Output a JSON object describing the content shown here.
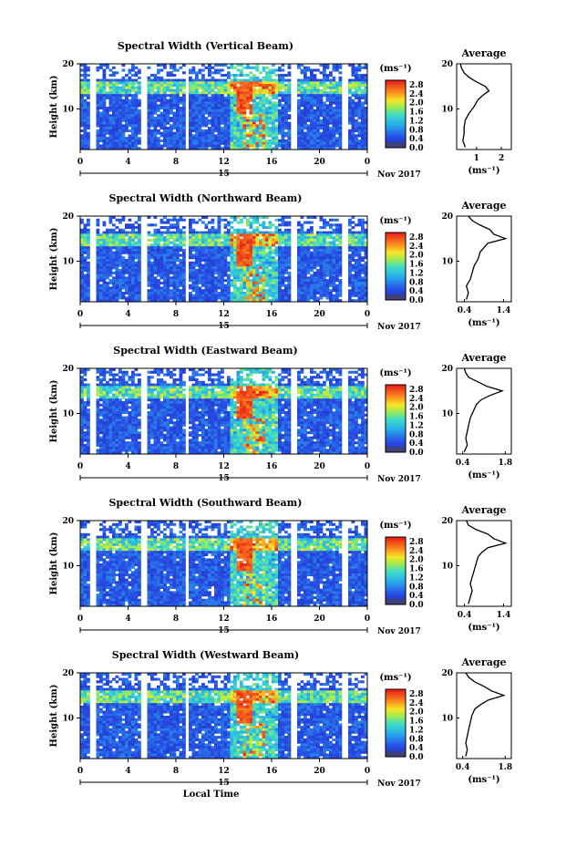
{
  "chart_data": [
    {
      "type": "heatmap",
      "title": "Spectral Width (Vertical Beam)",
      "ylabel": "Height (km)",
      "y_ticks": [
        "20",
        "10"
      ],
      "ylim": [
        1,
        20
      ],
      "x_ticks": [
        "0",
        "4",
        "8",
        "12",
        "16",
        "20",
        "0"
      ],
      "xlim": [
        0,
        24
      ],
      "day_label": "15",
      "month_label": "Nov 2017",
      "colorbar": {
        "unit": "(ms⁻¹)",
        "ticks": [
          "2.8",
          "2.4",
          "2.0",
          "1.6",
          "1.2",
          "0.8",
          "0.4",
          "0.0"
        ],
        "range": [
          0,
          3.0
        ]
      },
      "average_profile": {
        "title": "Average",
        "ylabel": "",
        "xlabel": "(ms⁻¹)",
        "x_ticks": [
          "1",
          "2"
        ],
        "xlim": [
          0.2,
          2.4
        ],
        "y_ticks": [
          "20",
          "10"
        ],
        "heights": [
          1.5,
          3,
          4.5,
          6,
          7.5,
          9,
          10.5,
          12,
          13,
          14,
          15,
          16,
          17,
          18,
          19,
          20
        ],
        "values": [
          0.55,
          0.45,
          0.5,
          0.5,
          0.55,
          0.7,
          0.9,
          1.05,
          1.25,
          1.5,
          1.35,
          1.0,
          0.7,
          0.5,
          0.4,
          0.35
        ]
      }
    },
    {
      "type": "heatmap",
      "title": "Spectral Width (Northward Beam)",
      "ylabel": "Height (km)",
      "y_ticks": [
        "20",
        "10"
      ],
      "ylim": [
        1,
        20
      ],
      "x_ticks": [
        "0",
        "4",
        "8",
        "12",
        "16",
        "20",
        "0"
      ],
      "xlim": [
        0,
        24
      ],
      "day_label": "15",
      "month_label": "Nov 2017",
      "colorbar": {
        "unit": "(ms⁻¹)",
        "ticks": [
          "2.8",
          "2.4",
          "2.0",
          "1.6",
          "1.2",
          "0.8",
          "0.4",
          "0.0"
        ],
        "range": [
          0,
          3.0
        ]
      },
      "average_profile": {
        "title": "Average",
        "xlabel": "(ms⁻¹)",
        "x_ticks": [
          "0.4",
          "1.4"
        ],
        "xlim": [
          0.2,
          1.6
        ],
        "y_ticks": [
          "20",
          "10"
        ],
        "heights": [
          1.5,
          3,
          4.5,
          6,
          7.5,
          9,
          10.5,
          12,
          13,
          14,
          15,
          16,
          17,
          18,
          19,
          20
        ],
        "values": [
          0.45,
          0.5,
          0.45,
          0.55,
          0.6,
          0.65,
          0.75,
          0.8,
          0.9,
          1.0,
          1.45,
          1.15,
          1.05,
          0.8,
          0.6,
          0.5
        ]
      }
    },
    {
      "type": "heatmap",
      "title": "Spectral Width (Eastward Beam)",
      "ylabel": "Height (km)",
      "y_ticks": [
        "20",
        "10"
      ],
      "ylim": [
        1,
        20
      ],
      "x_ticks": [
        "0",
        "4",
        "8",
        "12",
        "16",
        "20",
        "0"
      ],
      "xlim": [
        0,
        24
      ],
      "day_label": "15",
      "month_label": "Nov 2017",
      "colorbar": {
        "unit": "(ms⁻¹)",
        "ticks": [
          "2.8",
          "2.4",
          "2.0",
          "1.6",
          "1.2",
          "0.8",
          "0.4",
          "0.0"
        ],
        "range": [
          0,
          3.0
        ]
      },
      "average_profile": {
        "title": "Average",
        "xlabel": "(ms⁻¹)",
        "x_ticks": [
          "0.4",
          "1.8"
        ],
        "xlim": [
          0.2,
          2.0
        ],
        "y_ticks": [
          "20",
          "10"
        ],
        "heights": [
          1.5,
          3,
          4.5,
          6,
          7.5,
          9,
          10.5,
          12,
          13,
          14,
          15,
          16,
          17,
          18,
          19,
          20
        ],
        "values": [
          0.45,
          0.55,
          0.5,
          0.55,
          0.6,
          0.65,
          0.75,
          0.85,
          1.0,
          1.3,
          1.7,
          1.2,
          0.9,
          0.6,
          0.5,
          0.45
        ]
      }
    },
    {
      "type": "heatmap",
      "title": "Spectral Width (Southward Beam)",
      "ylabel": "Height (km)",
      "y_ticks": [
        "20",
        "10"
      ],
      "ylim": [
        1,
        20
      ],
      "x_ticks": [
        "0",
        "4",
        "8",
        "12",
        "16",
        "20",
        "0"
      ],
      "xlim": [
        0,
        24
      ],
      "day_label": "15",
      "month_label": "Nov 2017",
      "colorbar": {
        "unit": "(ms⁻¹)",
        "ticks": [
          "2.8",
          "2.4",
          "2.0",
          "1.6",
          "1.2",
          "0.8",
          "0.4",
          "0.0"
        ],
        "range": [
          0,
          3.0
        ]
      },
      "average_profile": {
        "title": "Average",
        "xlabel": "(ms⁻¹)",
        "x_ticks": [
          "0.4",
          "1.4"
        ],
        "xlim": [
          0.2,
          1.6
        ],
        "y_ticks": [
          "20",
          "10"
        ],
        "heights": [
          1.5,
          3,
          4.5,
          6,
          7.5,
          9,
          10.5,
          12,
          13,
          14,
          15,
          16,
          17,
          18,
          19,
          20
        ],
        "values": [
          0.5,
          0.55,
          0.6,
          0.55,
          0.6,
          0.65,
          0.7,
          0.75,
          0.85,
          1.0,
          1.45,
          1.15,
          1.0,
          0.7,
          0.5,
          0.45
        ]
      }
    },
    {
      "type": "heatmap",
      "title": "Spectral Width (Westward Beam)",
      "ylabel": "Height (km)",
      "y_ticks": [
        "20",
        "10"
      ],
      "ylim": [
        1,
        20
      ],
      "x_ticks": [
        "0",
        "4",
        "8",
        "12",
        "16",
        "20",
        "0"
      ],
      "xlim": [
        0,
        24
      ],
      "day_label": "15",
      "month_label": "Nov 2017",
      "xlabel": "Local Time",
      "colorbar": {
        "unit": "(ms⁻¹)",
        "ticks": [
          "2.8",
          "2.4",
          "2.0",
          "1.6",
          "1.2",
          "0.8",
          "0.4",
          "0.0"
        ],
        "range": [
          0,
          3.0
        ]
      },
      "average_profile": {
        "title": "Average",
        "xlabel": "(ms⁻¹)",
        "x_ticks": [
          "0.4",
          "1.8"
        ],
        "xlim": [
          0.2,
          2.0
        ],
        "y_ticks": [
          "20",
          "10"
        ],
        "heights": [
          1.5,
          3,
          4.5,
          6,
          7.5,
          9,
          10.5,
          12,
          13,
          14,
          15,
          16,
          17,
          18,
          19,
          20
        ],
        "values": [
          0.5,
          0.55,
          0.5,
          0.55,
          0.6,
          0.65,
          0.7,
          0.8,
          1.0,
          1.25,
          1.75,
          1.35,
          1.1,
          0.8,
          0.6,
          0.5
        ]
      }
    }
  ],
  "colors": {
    "low": "#1e2fd0",
    "mid": "#2aa7e8",
    "high": "#ee2b1f",
    "bar_bottom": "#40407a"
  }
}
